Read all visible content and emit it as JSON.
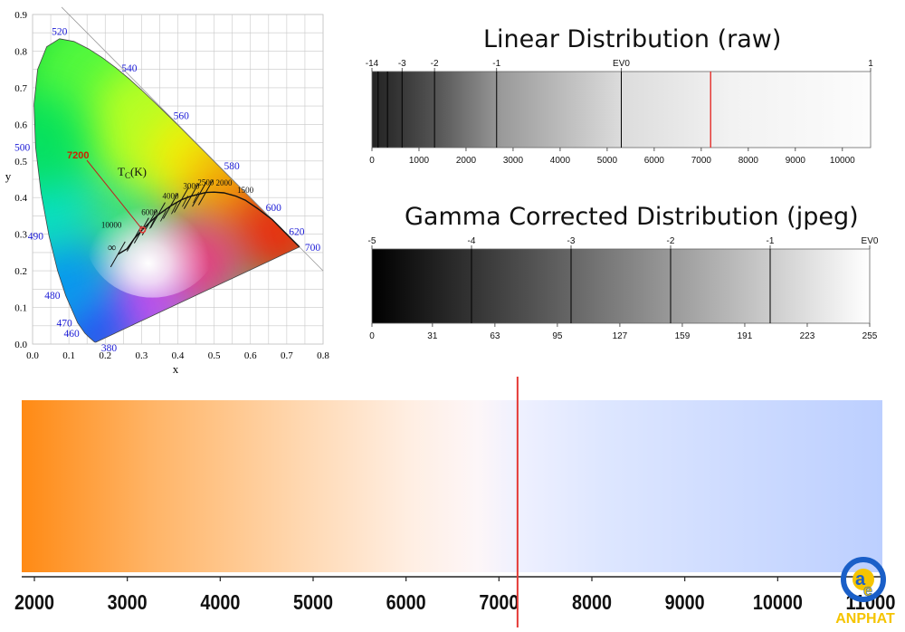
{
  "colors": {
    "marker": "#e53935",
    "warm": "#ff8c1a",
    "cool": "#b8ccff",
    "spectral_label": "#1a1ad6",
    "temp_label": "#cc2200",
    "logo_blue": "#1a5fc8",
    "logo_yellow": "#f5c400"
  },
  "cie_chart": {
    "type": "scatter",
    "xlabel": "x",
    "ylabel": "y",
    "xlim": [
      0,
      0.8
    ],
    "ylim": [
      0,
      0.9
    ],
    "x_ticks": [
      "0.0",
      "0.1",
      "0.2",
      "0.3",
      "0.4",
      "0.5",
      "0.6",
      "0.7",
      "0.8"
    ],
    "y_ticks": [
      "0.0",
      "0.1",
      "0.2",
      "0.3",
      "0.4",
      "0.5",
      "0.6",
      "0.7",
      "0.8",
      "0.9"
    ],
    "wavelength_labels": [
      {
        "text": "520",
        "x": 0.074,
        "y": 0.834
      },
      {
        "text": "540",
        "x": 0.23,
        "y": 0.754
      },
      {
        "text": "560",
        "x": 0.373,
        "y": 0.624
      },
      {
        "text": "580",
        "x": 0.512,
        "y": 0.487
      },
      {
        "text": "600",
        "x": 0.627,
        "y": 0.373
      },
      {
        "text": "620",
        "x": 0.691,
        "y": 0.308
      },
      {
        "text": "700",
        "x": 0.735,
        "y": 0.265
      },
      {
        "text": "500",
        "x": 0.008,
        "y": 0.538
      },
      {
        "text": "490",
        "x": 0.045,
        "y": 0.295
      },
      {
        "text": "480",
        "x": 0.091,
        "y": 0.133
      },
      {
        "text": "470",
        "x": 0.124,
        "y": 0.058
      },
      {
        "text": "460",
        "x": 0.144,
        "y": 0.03
      },
      {
        "text": "380",
        "x": 0.174,
        "y": 0.005
      }
    ],
    "planckian_label": "T",
    "planckian_label_sub": "C",
    "planckian_label_unit": "(K)",
    "temperature_labels": [
      {
        "text": "10000",
        "x": 0.28,
        "y": 0.288
      },
      {
        "text": "6000",
        "x": 0.322,
        "y": 0.332
      },
      {
        "text": "4000",
        "x": 0.38,
        "y": 0.377
      },
      {
        "text": "3000",
        "x": 0.437,
        "y": 0.404
      },
      {
        "text": "2500",
        "x": 0.477,
        "y": 0.414
      },
      {
        "text": "2000",
        "x": 0.527,
        "y": 0.413
      },
      {
        "text": "1500",
        "x": 0.586,
        "y": 0.393
      },
      {
        "text": "∞",
        "x": 0.24,
        "y": 0.234
      }
    ],
    "marker_label": "7200",
    "marker_point": {
      "x": 0.303,
      "y": 0.312
    }
  },
  "linear_chart": {
    "type": "bar",
    "title": "Linear Distribution (raw)",
    "ev_ticks": [
      {
        "label": "-14",
        "value": 0
      },
      {
        "label": "-3",
        "value": 640
      },
      {
        "label": "-2",
        "value": 1330
      },
      {
        "label": "-1",
        "value": 2650
      },
      {
        "label": "EV0",
        "value": 5300
      },
      {
        "label": "1",
        "value": 10600
      }
    ],
    "divider_values": [
      130,
      330,
      640,
      1330,
      2650,
      5300
    ],
    "axis_ticks": [
      "0",
      "1000",
      "2000",
      "3000",
      "4000",
      "5000",
      "6000",
      "7000",
      "8000",
      "9000",
      "10000"
    ],
    "xlim": [
      0,
      10600
    ],
    "marker_value": 7200
  },
  "gamma_chart": {
    "type": "bar",
    "title": "Gamma Corrected Distribution (jpeg)",
    "ev_ticks": [
      "-5",
      "-4",
      "-3",
      "-2",
      "-1",
      "EV0"
    ],
    "axis_ticks": [
      "0",
      "31",
      "63",
      "95",
      "127",
      "159",
      "191",
      "223",
      "255"
    ],
    "xlim": [
      0,
      255
    ]
  },
  "temperature_chart": {
    "type": "bar",
    "xlim": [
      1900,
      11500
    ],
    "ticks": [
      "2000",
      "3000",
      "4000",
      "5000",
      "6000",
      "7000",
      "8000",
      "9000",
      "10000",
      "11000"
    ],
    "marker_value": 7200
  },
  "logo": {
    "text": "ANPHAT",
    "glyph_a": "a",
    "glyph_e": "e"
  }
}
